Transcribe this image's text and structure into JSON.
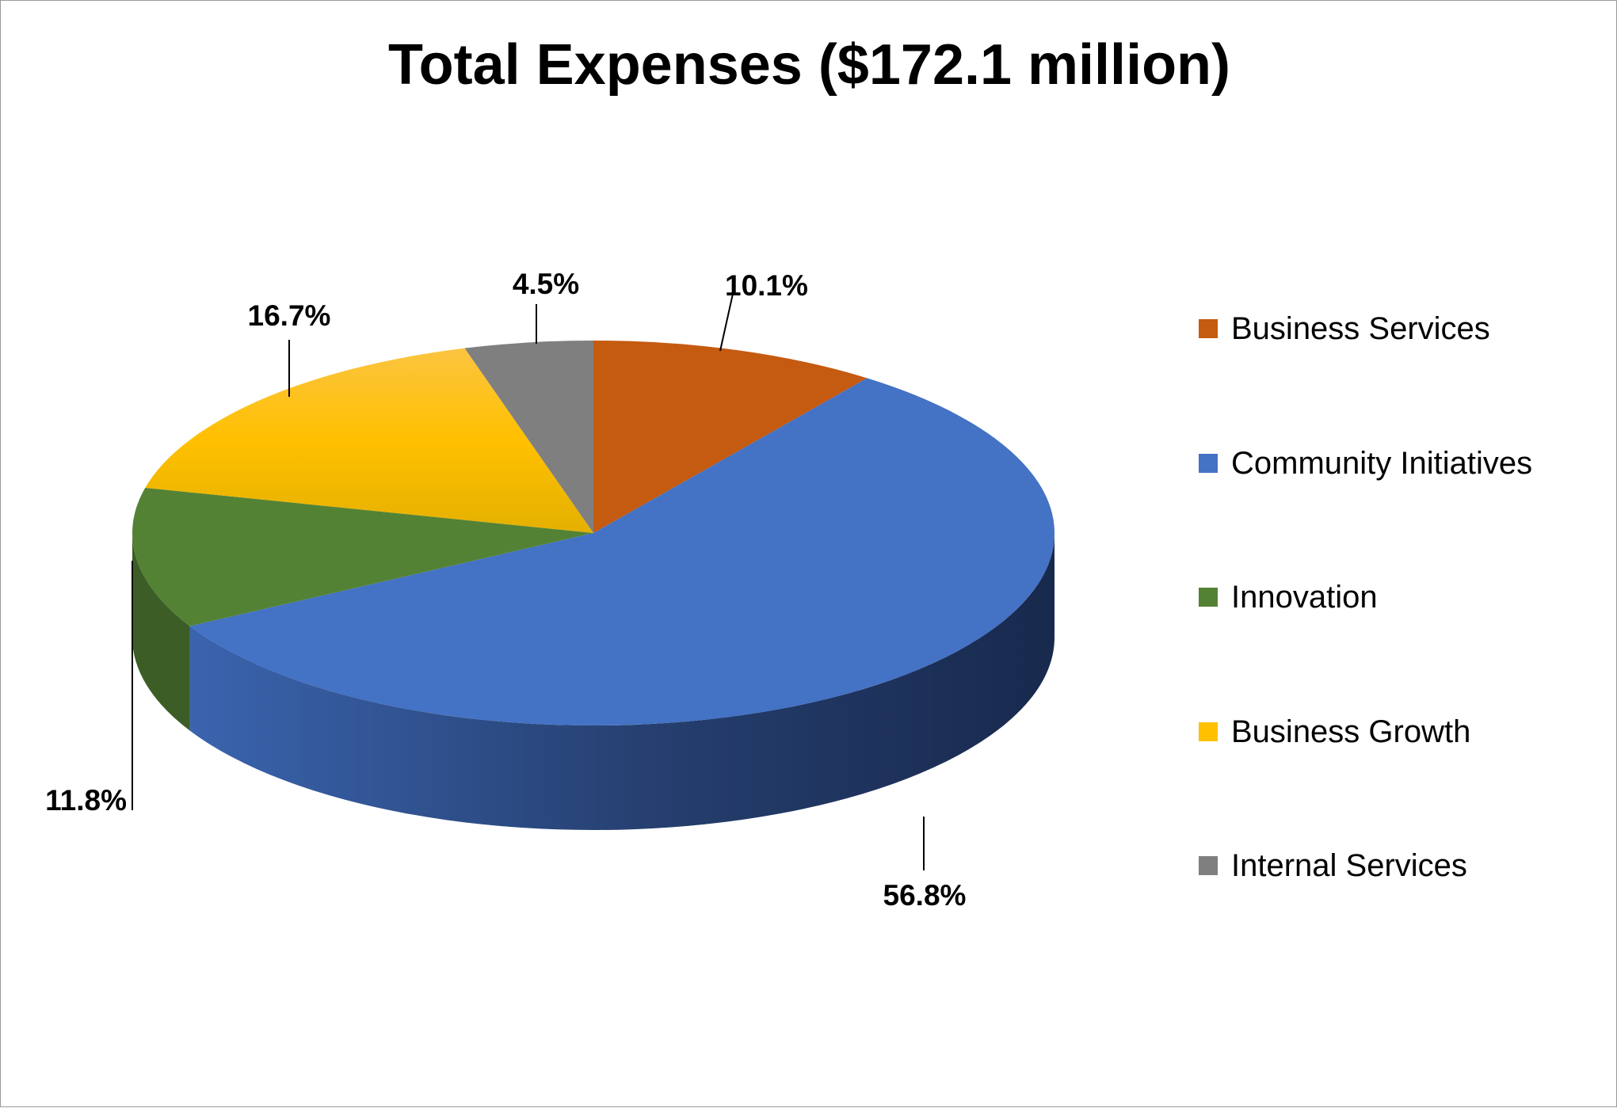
{
  "chart_data": {
    "type": "pie",
    "title": "Total Expenses ($172.1 million)",
    "legend_position": "right",
    "slices": [
      {
        "name": "Business Services",
        "value": 10.1,
        "label": "10.1%",
        "color": "#C55A11"
      },
      {
        "name": "Community Initiatives",
        "value": 56.8,
        "label": "56.8%",
        "color": "#4472C4"
      },
      {
        "name": "Innovation",
        "value": 11.8,
        "label": "11.8%",
        "color": "#548235"
      },
      {
        "name": "Business Growth",
        "value": 16.7,
        "label": "16.7%",
        "color": "#FFC000"
      },
      {
        "name": "Internal Services",
        "value": 4.5,
        "label": "4.5%",
        "color": "#7F7F7F"
      }
    ]
  }
}
